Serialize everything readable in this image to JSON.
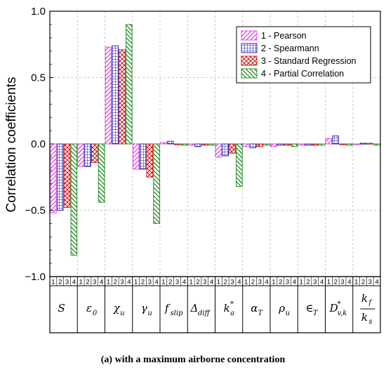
{
  "chart_data": {
    "type": "bar",
    "ylabel": "Correlation coefficients",
    "ylim": [
      -1.0,
      1.0
    ],
    "yticks": [
      -1.0,
      -0.5,
      0.0,
      0.5,
      1.0
    ],
    "ytick_labels": [
      "−1.0",
      "−0.5",
      "0.0",
      "0.5",
      "1.0"
    ],
    "grid": true,
    "legend_position": "top-right",
    "sub_ticks": [
      "1",
      "2",
      "3",
      "4"
    ],
    "categories": [
      {
        "sym": "S",
        "sub": "",
        "frac": false
      },
      {
        "sym": "ε",
        "sub": "0",
        "frac": false
      },
      {
        "sym": "χ",
        "sub": "u",
        "frac": false
      },
      {
        "sym": "γ",
        "sub": "u",
        "frac": false
      },
      {
        "sym": "f",
        "sub": "slip",
        "frac": false
      },
      {
        "sym": "Δ",
        "sub": "diff",
        "frac": false
      },
      {
        "sym": "k",
        "sub": "a",
        "sup": "*",
        "frac": false
      },
      {
        "sym": "α",
        "sub": "T",
        "frac": false
      },
      {
        "sym": "ρ",
        "sub": "u",
        "frac": false
      },
      {
        "sym": "∈",
        "sub": "T",
        "frac": false
      },
      {
        "sym": "D",
        "sub": "v,k",
        "sup": "*",
        "frac": false
      },
      {
        "sym": "k",
        "sub": "f",
        "den": "k",
        "densub": "s",
        "frac": true
      }
    ],
    "series": [
      {
        "name": "1 - Pearson",
        "color": "#e03ce0",
        "pattern": "diag-right",
        "values": [
          -0.52,
          -0.17,
          0.73,
          -0.19,
          0.01,
          -0.01,
          -0.1,
          -0.02,
          -0.02,
          -0.01,
          0.04,
          0.0
        ]
      },
      {
        "name": "2 - Spearmann",
        "color": "#1a1aa8",
        "pattern": "grid",
        "values": [
          -0.5,
          -0.17,
          0.74,
          -0.19,
          0.02,
          -0.02,
          -0.09,
          -0.03,
          -0.01,
          -0.01,
          0.06,
          0.005
        ]
      },
      {
        "name": "3 - Standard Regression",
        "color": "#cc1010",
        "pattern": "crosshatch",
        "values": [
          -0.48,
          -0.14,
          0.71,
          -0.25,
          0.0,
          -0.01,
          -0.07,
          -0.02,
          -0.01,
          -0.01,
          0.0,
          0.005
        ]
      },
      {
        "name": "4 - Partial Correlation",
        "color": "#1b8a1b",
        "pattern": "diag-left",
        "values": [
          -0.84,
          -0.44,
          0.9,
          -0.6,
          -0.01,
          -0.01,
          -0.32,
          -0.01,
          -0.02,
          -0.01,
          -0.01,
          -0.01
        ]
      }
    ]
  },
  "caption": "(a) with a maximum airborne concentration"
}
